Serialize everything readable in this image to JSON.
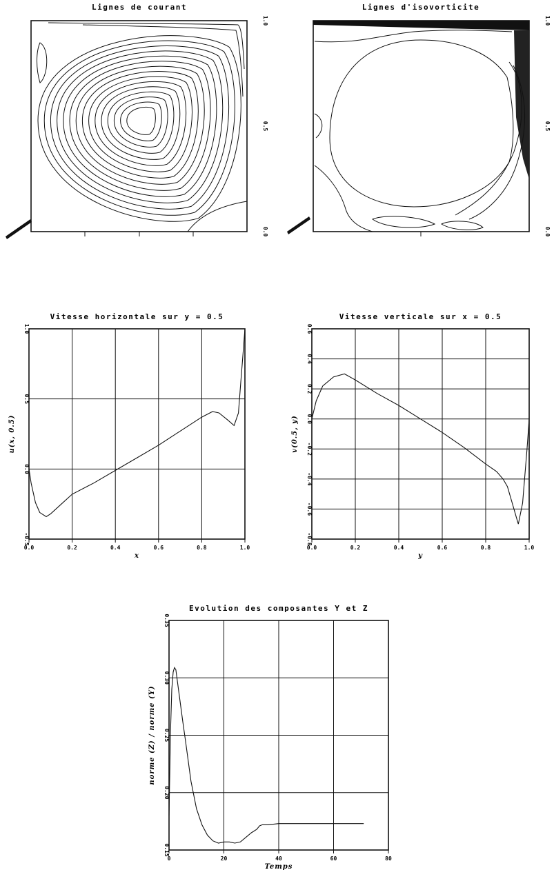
{
  "chart_data": [
    {
      "type": "contour",
      "title": "Lignes de courant",
      "right_ticks": [
        "1.0",
        "0.5",
        "0.0"
      ]
    },
    {
      "type": "contour",
      "title": "Lignes d'isovorticite",
      "right_ticks": [
        "1.0",
        "0.5",
        "0.0"
      ]
    },
    {
      "type": "line",
      "title": "Vitesse horizontale sur y = 0.5",
      "xlabel": "x",
      "ylabel": "u(x, 0.5)",
      "xlim": [
        0,
        1
      ],
      "ylim": [
        -0.5,
        1.0
      ],
      "xticks": [
        "0.0",
        "0.2",
        "0.4",
        "0.6",
        "0.8",
        "1.0"
      ],
      "yticks": [
        "-0.5",
        "0.0",
        "0.5",
        "1.0"
      ],
      "grid": true,
      "series": [
        {
          "x": [
            0,
            0.01,
            0.03,
            0.05,
            0.08,
            0.1,
            0.15,
            0.2,
            0.3,
            0.4,
            0.5,
            0.6,
            0.7,
            0.8,
            0.85,
            0.88,
            0.92,
            0.95,
            0.97,
            0.98,
            0.99,
            1.0
          ],
          "y": [
            0,
            -0.1,
            -0.24,
            -0.31,
            -0.34,
            -0.32,
            -0.25,
            -0.18,
            -0.1,
            -0.01,
            0.08,
            0.17,
            0.27,
            0.37,
            0.41,
            0.4,
            0.35,
            0.31,
            0.4,
            0.6,
            0.8,
            1.0
          ]
        }
      ]
    },
    {
      "type": "line",
      "title": "Vitesse verticale sur x = 0.5",
      "xlabel": "y",
      "ylabel": "v(0.5, y)",
      "xlim": [
        0,
        1
      ],
      "ylim": [
        -0.8,
        0.6
      ],
      "xticks": [
        "0.0",
        "0.2",
        "0.4",
        "0.6",
        "0.8",
        "1.0"
      ],
      "yticks": [
        "-0.8",
        "-0.6",
        "-0.4",
        "-0.2",
        "0.0",
        "0.2",
        "0.4",
        "0.6"
      ],
      "grid": true,
      "series": [
        {
          "x": [
            0,
            0.02,
            0.05,
            0.1,
            0.15,
            0.2,
            0.3,
            0.4,
            0.5,
            0.6,
            0.7,
            0.8,
            0.85,
            0.88,
            0.9,
            0.92,
            0.94,
            0.95,
            0.97,
            0.99,
            1.0
          ],
          "y": [
            0,
            0.12,
            0.22,
            0.28,
            0.3,
            0.26,
            0.17,
            0.09,
            0,
            -0.09,
            -0.19,
            -0.3,
            -0.35,
            -0.4,
            -0.45,
            -0.55,
            -0.65,
            -0.7,
            -0.56,
            -0.2,
            0
          ]
        }
      ]
    },
    {
      "type": "line",
      "title": "Evolution des composantes Y et Z",
      "xlabel": "Temps",
      "ylabel": "norme (Z) / norme (Y)",
      "xlim": [
        0,
        80
      ],
      "ylim": [
        0.15,
        0.35
      ],
      "xticks": [
        "0",
        "20",
        "40",
        "60",
        "80"
      ],
      "yticks": [
        "0.15",
        "0.20",
        "0.25",
        "0.30",
        "0.35"
      ],
      "grid": true,
      "series": [
        {
          "x": [
            0,
            0.5,
            1,
            1.5,
            2,
            2.5,
            3,
            4,
            5,
            6,
            8,
            10,
            12,
            14,
            16,
            18,
            20,
            22,
            24,
            26,
            28,
            30,
            32,
            33,
            34,
            36,
            40,
            50,
            60,
            70,
            71
          ],
          "y": [
            0.18,
            0.25,
            0.29,
            0.305,
            0.309,
            0.307,
            0.298,
            0.28,
            0.262,
            0.245,
            0.21,
            0.186,
            0.172,
            0.163,
            0.158,
            0.156,
            0.157,
            0.157,
            0.156,
            0.157,
            0.161,
            0.165,
            0.168,
            0.171,
            0.172,
            0.172,
            0.173,
            0.173,
            0.173,
            0.173,
            0.173
          ]
        }
      ]
    }
  ]
}
